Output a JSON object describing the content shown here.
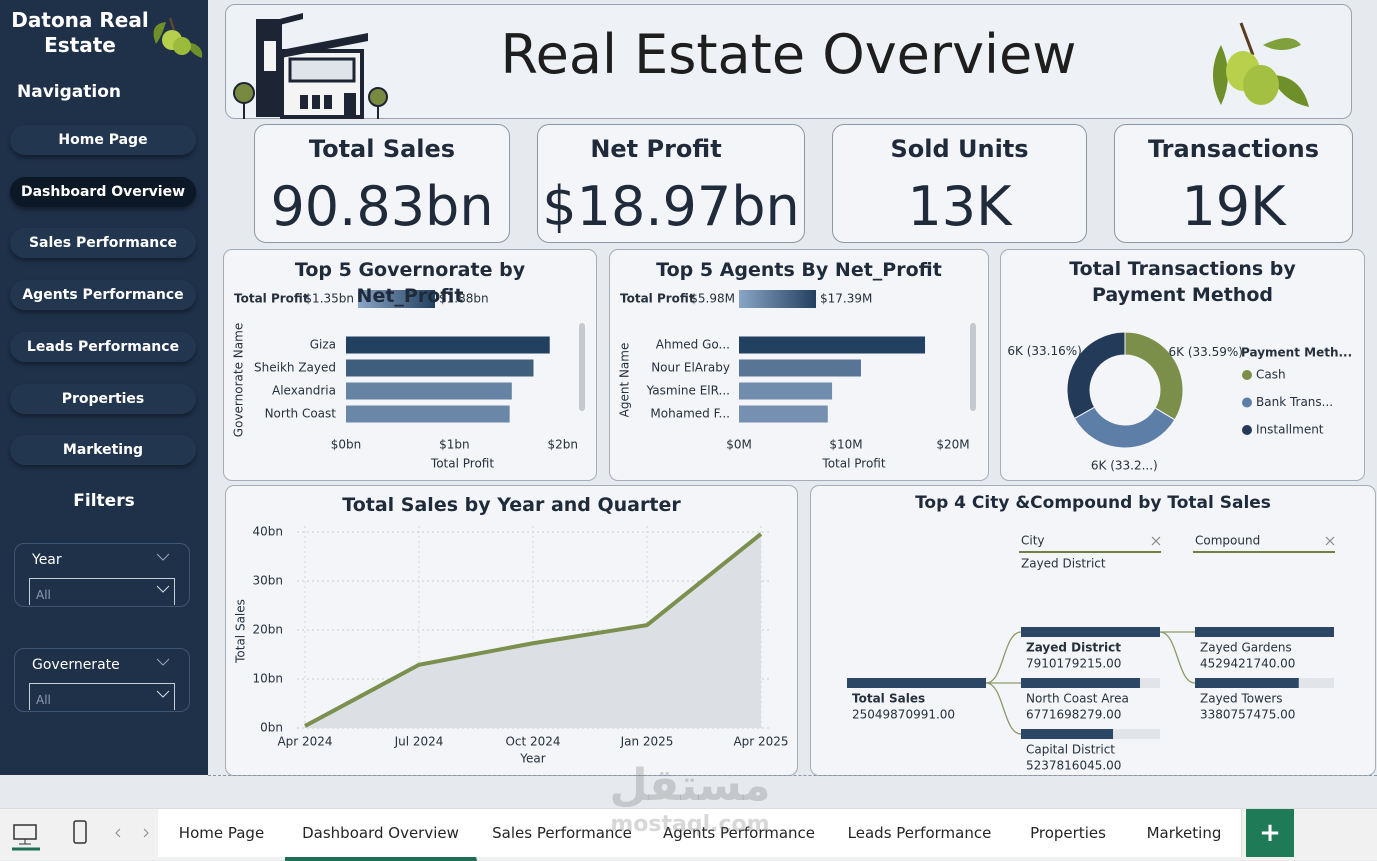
{
  "sidebar": {
    "brand": "Datona Real Estate",
    "nav_title": "Navigation",
    "nav": [
      "Home Page",
      "Dashboard Overview",
      "Sales Performance",
      "Agents Performance",
      "Leads Performance",
      "Properties",
      "Marketing"
    ],
    "active": 1,
    "filters_title": "Filters",
    "filters": [
      {
        "label": "Year",
        "value": "All"
      },
      {
        "label": "Governerate",
        "value": "All"
      }
    ]
  },
  "header": {
    "title": "Real Estate Overview"
  },
  "kpis": [
    {
      "label": "Total Sales",
      "value": "90.83bn"
    },
    {
      "label": "Net Profit",
      "value": "$18.97bn"
    },
    {
      "label": "Sold Units",
      "value": "13K"
    },
    {
      "label": "Transactions",
      "value": "19K"
    }
  ],
  "chart_data": [
    {
      "type": "hbar",
      "title": "Top 5 Governorate by Net_Profit",
      "x_label": "Total Profit",
      "y_label": "Governorate Name",
      "categories": [
        "Giza",
        "Sheikh Zayed",
        "Alexandria",
        "North Coast"
      ],
      "values": [
        1.88,
        1.73,
        1.53,
        1.51
      ],
      "xlim": [
        0,
        2.15
      ],
      "xticks": [
        {
          "value": 0,
          "label": "$0bn"
        },
        {
          "value": 1,
          "label": "$1bn"
        },
        {
          "value": 2,
          "label": "$2bn"
        }
      ],
      "color_legend": {
        "title": "Total Profit",
        "min": {
          "value": 1.35,
          "label": "$1.35bn"
        },
        "max": {
          "value": 1.88,
          "label": "$1.88bn"
        },
        "colors": [
          "#8aa5c6",
          "#22405f"
        ]
      }
    },
    {
      "type": "hbar",
      "title": "Top 5 Agents By Net_Profit",
      "x_label": "Total Profit",
      "y_label": "Agent Name",
      "categories": [
        "Ahmed Go...",
        "Nour ElAraby",
        "Yasmine ElR...",
        "Mohamed F..."
      ],
      "values": [
        17.39,
        11.4,
        8.7,
        8.3
      ],
      "xlim": [
        0,
        21.5
      ],
      "xticks": [
        {
          "value": 0,
          "label": "$0M"
        },
        {
          "value": 10,
          "label": "$10M"
        },
        {
          "value": 20,
          "label": "$20M"
        }
      ],
      "color_legend": {
        "title": "Total Profit",
        "min": {
          "value": 5.98,
          "label": "$5.98M"
        },
        "max": {
          "value": 17.39,
          "label": "$17.39M"
        },
        "colors": [
          "#8aa5c6",
          "#22405f"
        ]
      }
    },
    {
      "type": "donut",
      "title": "Total Transactions by Payment Method",
      "legend_title": "Payment Meth...",
      "categories": [
        "Cash",
        "Bank Trans...",
        "Installment"
      ],
      "values": [
        33.59,
        33.25,
        33.16
      ],
      "value_labels": [
        "6K (33.59%)",
        "6K (33.2...)",
        "6K (33.16%)"
      ],
      "colors": [
        "#7b8f4b",
        "#5d7ea6",
        "#233b58"
      ]
    },
    {
      "type": "area",
      "title": "Total Sales by Year and Quarter",
      "x_label": "Year",
      "y_label": "Total Sales",
      "categories": [
        "Apr 2024",
        "Jul 2024",
        "Oct 2024",
        "Jan 2025",
        "Apr 2025"
      ],
      "values": [
        0.4,
        12.9,
        17.3,
        21.0,
        39.6
      ],
      "ylim": [
        0,
        40
      ],
      "yticks": [
        {
          "value": 0,
          "label": "0bn"
        },
        {
          "value": 10,
          "label": "10bn"
        },
        {
          "value": 20,
          "label": "20bn"
        },
        {
          "value": 30,
          "label": "30bn"
        },
        {
          "value": 40,
          "label": "40bn"
        }
      ],
      "grid": true,
      "color": "#7b8f4e",
      "fill": "#dcdfe3"
    },
    {
      "type": "decomposition_tree",
      "title": "Top 4 City &Compound by Total Sales",
      "levels": [
        {
          "label": "City",
          "selected": "Zayed District"
        },
        {
          "label": "Compound"
        }
      ],
      "root": {
        "label": "Total Sales",
        "value": 25049870991,
        "value_label": "25049870991.00"
      },
      "nodes": [
        [
          {
            "label": "Zayed District",
            "value": 7910179215,
            "value_label": "7910179215.00"
          },
          {
            "label": "North Coast Area",
            "value": 6771698279,
            "value_label": "6771698279.00"
          },
          {
            "label": "Capital District",
            "value": 5237816045,
            "value_label": "5237816045.00"
          }
        ],
        [
          {
            "label": "Zayed Gardens",
            "value": 4529421740,
            "value_label": "4529421740.00"
          },
          {
            "label": "Zayed Towers",
            "value": 3380757475,
            "value_label": "3380757475.00"
          }
        ]
      ],
      "color": "#2c4766"
    }
  ],
  "tabs": {
    "items": [
      "Home Page",
      "Dashboard Overview",
      "Sales Performance",
      "Agents Performance",
      "Leads Performance",
      "Properties",
      "Marketing"
    ],
    "active": 1,
    "add": "+"
  },
  "watermark": {
    "arabic": "مستقل",
    "latin": "mostaql.com"
  }
}
